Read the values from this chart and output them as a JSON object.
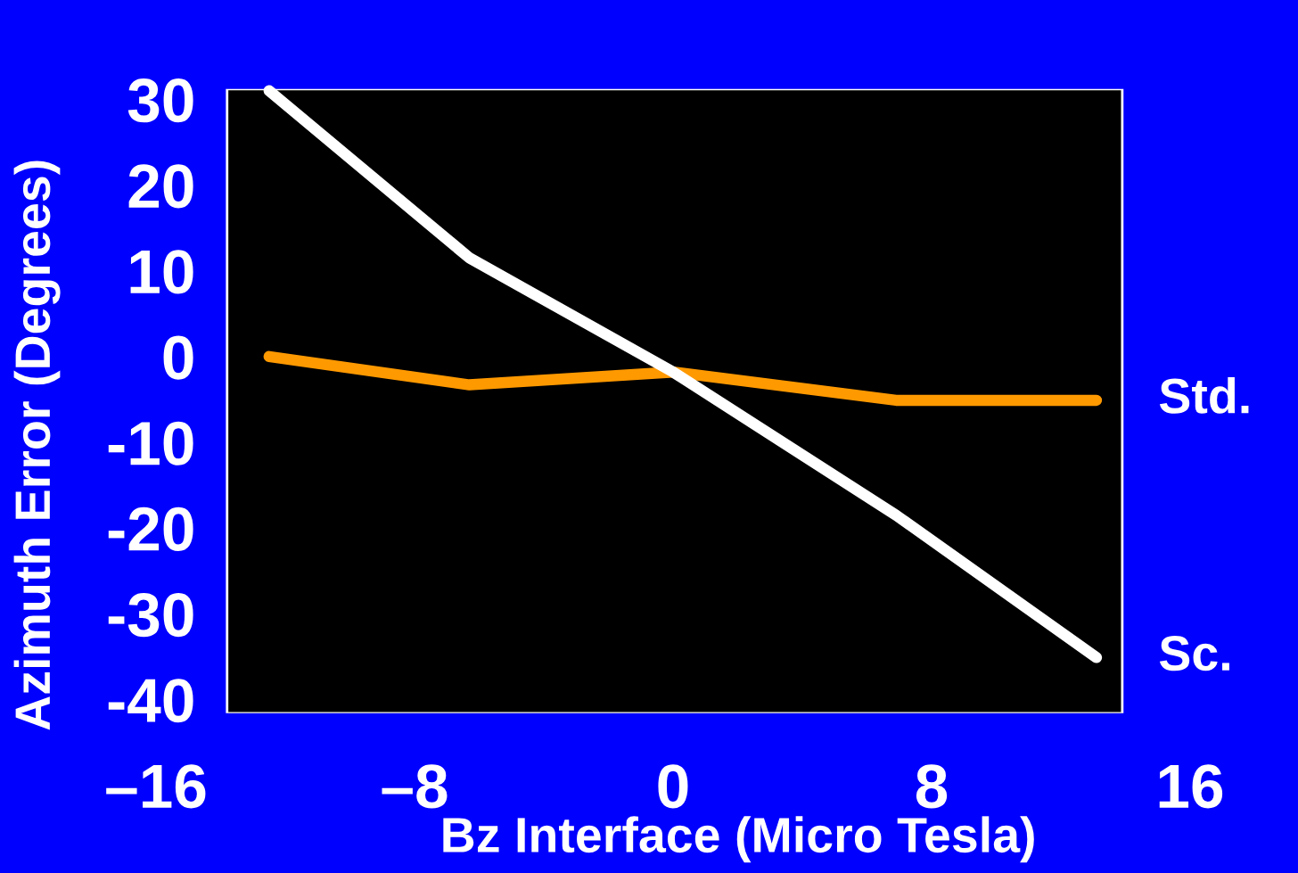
{
  "chart_data": {
    "type": "line",
    "xlabel": "Bz Interface (Micro Tesla)",
    "ylabel": "Azimuth Error (Degrees)",
    "x": [
      -12.5,
      -6.3,
      0,
      6.9,
      13.1
    ],
    "series": [
      {
        "name": "Std.",
        "color": "#ff9900",
        "values": [
          0,
          -3.3,
          -1.8,
          -5.1,
          -5.1
        ]
      },
      {
        "name": "Sc.",
        "color": "#ffffff",
        "values": [
          31,
          11.5,
          -1.8,
          -18.5,
          -35.1
        ]
      }
    ],
    "bands": [
      {
        "axis": "x",
        "from": -13.8,
        "to": 13.9,
        "color": "#000000"
      }
    ],
    "xlim": [
      -16,
      16
    ],
    "xticks": [
      {
        "value": -16,
        "label": "–16"
      },
      {
        "value": -8,
        "label": "–8"
      },
      0,
      8,
      16
    ],
    "ylim": [
      -41.6,
      31.2
    ],
    "yticks": [
      -40,
      -30,
      -20,
      -10,
      0,
      10,
      20,
      30
    ],
    "grid": false,
    "legend": false,
    "marker": "none",
    "line_style": "solid"
  }
}
